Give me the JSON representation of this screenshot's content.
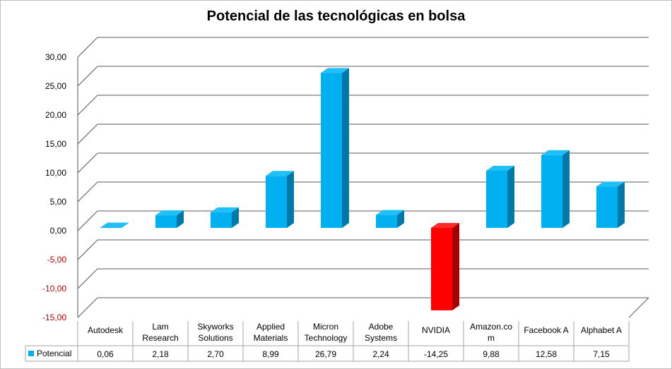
{
  "chart_data": {
    "type": "bar",
    "title": "Potencial de las tecnológicas en bolsa",
    "categories": [
      [
        "Autodesk"
      ],
      [
        "Lam",
        "Research"
      ],
      [
        "Skyworks",
        "Solutions"
      ],
      [
        "Applied",
        "Materials"
      ],
      [
        "Micron",
        "Technology"
      ],
      [
        "Adobe",
        "Systems"
      ],
      [
        "NVIDIA"
      ],
      [
        "Amazon.co",
        "m"
      ],
      [
        "Facebook A"
      ],
      [
        "Alphabet A"
      ]
    ],
    "series": [
      {
        "name": "Potencial",
        "values": [
          0.06,
          2.18,
          2.7,
          8.99,
          26.79,
          2.24,
          -14.25,
          9.88,
          12.58,
          7.15
        ],
        "value_labels": [
          "0,06",
          "2,18",
          "2,70",
          "8,99",
          "26,79",
          "2,24",
          "-14,25",
          "9,88",
          "12,58",
          "7,15"
        ]
      }
    ],
    "ylim": [
      -15,
      30
    ],
    "ytick_values": [
      30,
      25,
      20,
      15,
      10,
      5,
      0,
      -5,
      -10,
      -15
    ],
    "ytick_labels": [
      "30,00",
      "25,00",
      "20,00",
      "15,00",
      "10,00",
      "5,00",
      "0,00",
      "-5,00",
      "-10,00",
      "-15,00"
    ],
    "grid": true,
    "legend": "data-table",
    "colors": {
      "positive_face": "#00b0f0",
      "positive_top": "#1ec0f7",
      "positive_side": "#0078a8",
      "negative_face": "#ff0000",
      "negative_top": "#ff2a2a",
      "negative_side": "#a80000",
      "negative_tick_text": "#c00000",
      "grid": "#595959",
      "table_border": "#a6a6a6",
      "legend_key": "#00b0f0"
    }
  }
}
